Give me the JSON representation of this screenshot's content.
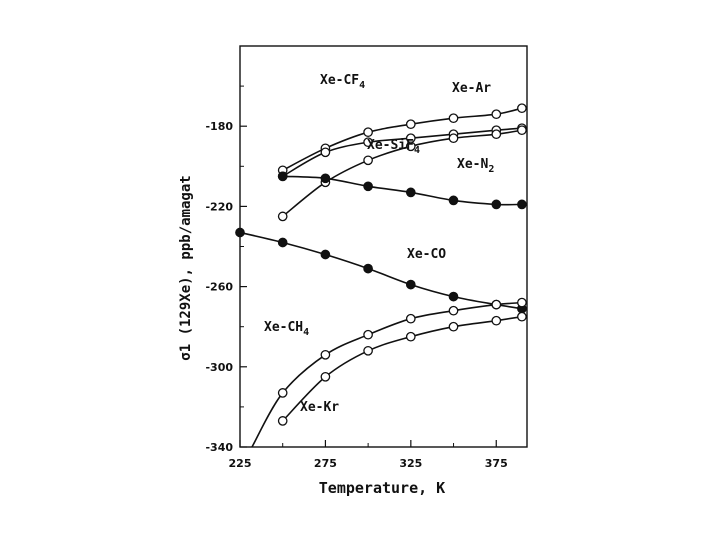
{
  "chart_data": {
    "type": "line",
    "title": "",
    "xlabel": "Temperature, K",
    "ylabel": "σ1 (129Xe), ppb/amagat",
    "xlim": [
      225,
      393
    ],
    "ylim": [
      -340,
      -140
    ],
    "xticks": [
      "225",
      "275",
      "325",
      "375"
    ],
    "yticks": [
      "-180",
      "-220",
      "-260",
      "-300",
      "-340"
    ],
    "grid": false,
    "legend": "none",
    "series": [
      {
        "name": "Xe-CF4",
        "label_main": "Xe-CF",
        "label_sub": "4",
        "marker": "open",
        "x": [
          250,
          275,
          300,
          325,
          350,
          375,
          390
        ],
        "y": [
          -202,
          -191,
          -183,
          -179,
          -176,
          -174,
          -171
        ]
      },
      {
        "name": "Xe-Ar",
        "label_main": "Xe-Ar",
        "label_sub": "",
        "marker": "open",
        "x": [
          250,
          275,
          300,
          325,
          350,
          375,
          390
        ],
        "y": [
          -205,
          -193,
          -188,
          -186,
          -184,
          -182,
          -181
        ]
      },
      {
        "name": "Xe-SiF4",
        "label_main": "Xe-SiF",
        "label_sub": "4",
        "marker": "open",
        "x": [
          250,
          275,
          300,
          325,
          350,
          375,
          390
        ],
        "y": [
          -225,
          -208,
          -197,
          -190,
          -186,
          -184,
          -182
        ]
      },
      {
        "name": "Xe-N2",
        "label_main": "Xe-N",
        "label_sub": "2",
        "marker": "filled",
        "x": [
          250,
          275,
          300,
          325,
          350,
          375,
          390
        ],
        "y": [
          -205,
          -206,
          -210,
          -213,
          -217,
          -219,
          -219
        ]
      },
      {
        "name": "Xe-CO",
        "label_main": "Xe-CO",
        "label_sub": "",
        "marker": "filled",
        "x": [
          225,
          250,
          275,
          300,
          325,
          350,
          375,
          390
        ],
        "y": [
          -233,
          -238,
          -244,
          -251,
          -259,
          -265,
          -269,
          -271
        ]
      },
      {
        "name": "Xe-CH4",
        "label_main": "Xe-CH",
        "label_sub": "4",
        "marker": "open",
        "x": [
          250,
          275,
          300,
          325,
          350,
          375,
          390
        ],
        "y": [
          -313,
          -294,
          -284,
          -276,
          -272,
          -269,
          -268
        ]
      },
      {
        "name": "Xe-Kr",
        "label_main": "Xe-Kr",
        "label_sub": "",
        "marker": "open",
        "x": [
          250,
          275,
          300,
          325,
          350,
          375,
          390
        ],
        "y": [
          -327,
          -305,
          -292,
          -285,
          -280,
          -277,
          -275
        ]
      }
    ]
  }
}
